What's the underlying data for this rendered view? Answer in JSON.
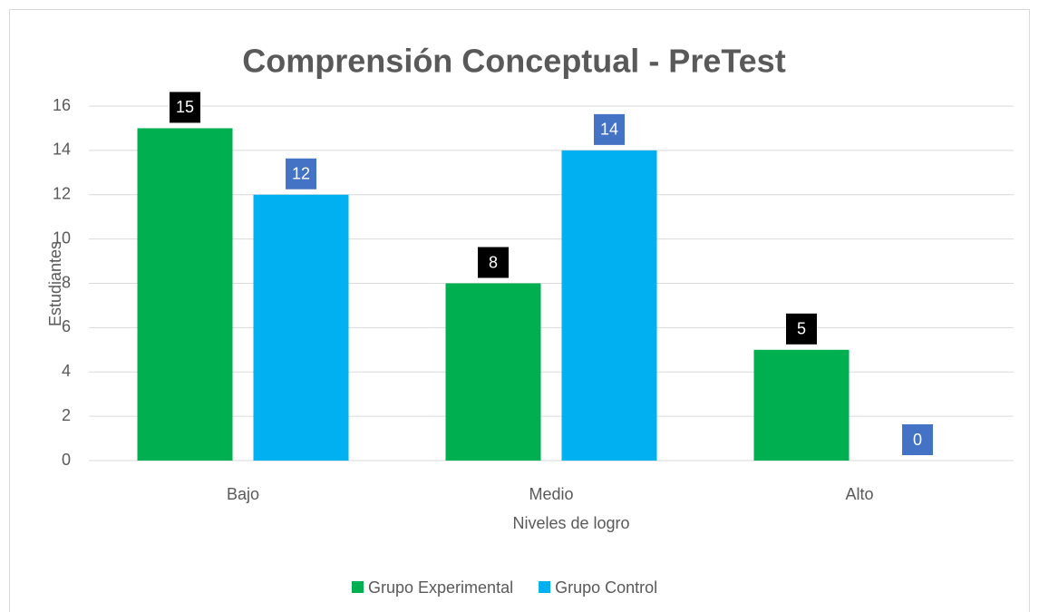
{
  "chart_data": {
    "type": "bar",
    "title": "Comprensión Conceptual - PreTest",
    "xlabel": "Niveles de logro",
    "ylabel": "Estudiantes",
    "categories": [
      "Bajo",
      "Medio",
      "Alto"
    ],
    "series": [
      {
        "name": "Grupo Experimental",
        "color": "#00b050",
        "label_color": "#000000",
        "values": [
          15,
          8,
          5
        ]
      },
      {
        "name": "Grupo Control",
        "color": "#00b0f0",
        "label_color": "#4472c4",
        "values": [
          12,
          14,
          0
        ]
      }
    ],
    "ylim": [
      0,
      16
    ],
    "yticks": [
      0,
      2,
      4,
      6,
      8,
      10,
      12,
      14,
      16
    ],
    "grid": true,
    "legend": "bottom"
  }
}
